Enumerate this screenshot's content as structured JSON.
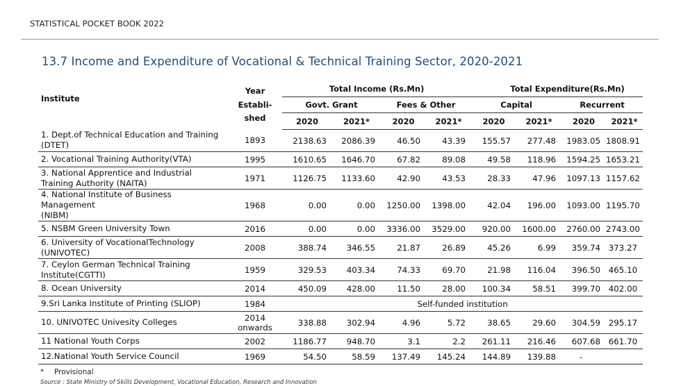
{
  "header": {
    "text": "STATISTICAL POCKET BOOK 2022"
  },
  "title": "13.7  Income and Expenditure of  Vocational & Technical  Training Sector, 2020-2021",
  "table": {
    "institute_header": "Institute",
    "year_header": [
      "Year",
      "Establi-",
      "shed"
    ],
    "income_header": "Total Income (Rs.Mn)",
    "expenditure_header": "Total Expenditure(Rs.Mn)",
    "sub_headers": [
      "Govt. Grant",
      "Fees & Other",
      "Capital",
      "Recurrent"
    ],
    "year_labels": [
      "2020",
      "2021*",
      "2020",
      "2021*",
      "2020",
      "2021*",
      "2020",
      "2021*"
    ],
    "rows": [
      {
        "name": [
          "1. Dept.of Technical Education and Training",
          "(DTET)"
        ],
        "year": [
          "1893"
        ],
        "values": [
          "2138.63",
          "2086.39",
          "46.50",
          "43.39",
          "155.57",
          "277.48",
          "1983.05",
          "1808.91"
        ],
        "h": 32
      },
      {
        "name": [
          "2. Vocational Training Authority(VTA)"
        ],
        "year": [
          "1995"
        ],
        "values": [
          "1610.65",
          "1646.70",
          "67.82",
          "89.08",
          "49.58",
          "118.96",
          "1594.25",
          "1653.21"
        ],
        "h": 22
      },
      {
        "name": [
          "3. National Apprentice and Industrial",
          "Training Authority (NAITA)"
        ],
        "year": [
          "1971"
        ],
        "values": [
          "1126.75",
          "1133.60",
          "42.90",
          "43.53",
          "28.33",
          "47.96",
          "1097.13",
          "1157.62"
        ],
        "h": 32
      },
      {
        "name": [
          "4. National Institute of Business Management",
          "(NIBM)"
        ],
        "year": [
          "1968"
        ],
        "values": [
          "0.00",
          "0.00",
          "1250.00",
          "1398.00",
          "42.04",
          "196.00",
          "1093.00",
          "1195.70"
        ],
        "h": 32
      },
      {
        "name": [
          "5.  NSBM Green University Town"
        ],
        "year": [
          "2016"
        ],
        "values": [
          "0.00",
          "0.00",
          "3336.00",
          "3529.00",
          "920.00",
          "1600.00",
          "2760.00",
          "2743.00"
        ],
        "h": 22
      },
      {
        "name": [
          "6. University of VocationalTechnology",
          "(UNIVOTEC)"
        ],
        "year": [
          "2008"
        ],
        "values": [
          "388.74",
          "346.55",
          "21.87",
          "26.89",
          "45.26",
          "6.99",
          "359.74",
          "373.27"
        ],
        "h": 32
      },
      {
        "name": [
          "7. Ceylon German Technical  Training",
          "Institute(CGTTI)"
        ],
        "year": [
          "1959"
        ],
        "values": [
          "329.53",
          "403.34",
          "74.33",
          "69.70",
          "21.98",
          "116.04",
          "396.50",
          "465.10"
        ],
        "h": 32
      },
      {
        "name": [
          "8. Ocean University"
        ],
        "year": [
          "2014"
        ],
        "values": [
          "450.09",
          "428.00",
          "11.50",
          "28.00",
          "100.34",
          "58.51",
          "399.70",
          "402.00"
        ],
        "h": 22
      },
      {
        "name": [
          "9.Sri Lanka Institute of Printing (SLIOP)"
        ],
        "year": [
          "1984"
        ],
        "note": "Self-funded institution",
        "h": 22
      },
      {
        "name": [
          "10. UNIVOTEC Univesity Colleges"
        ],
        "year": [
          "2014",
          "onwards"
        ],
        "values": [
          "338.88",
          "302.94",
          "4.96",
          "5.72",
          "38.65",
          "29.60",
          "304.59",
          "295.17"
        ],
        "h": 32
      },
      {
        "name": [
          "11 National Youth Corps"
        ],
        "year": [
          "2002"
        ],
        "values": [
          "1186.77",
          "948.70",
          "3.1",
          "2.2",
          "261.11",
          "216.46",
          "607.68",
          "661.70"
        ],
        "h": 22
      },
      {
        "name": [
          "12.National Youth Service Council"
        ],
        "year": [
          "1969"
        ],
        "values": [
          "54.50",
          "58.59",
          "137.49",
          "145.24",
          "144.89",
          "139.88",
          "-",
          ""
        ],
        "h": 22
      }
    ]
  },
  "footnote": {
    "symbol": "*",
    "text": "Provisional"
  },
  "source": "Source : State Ministry of Skills Development, Vocational Education, Research and Innovation"
}
